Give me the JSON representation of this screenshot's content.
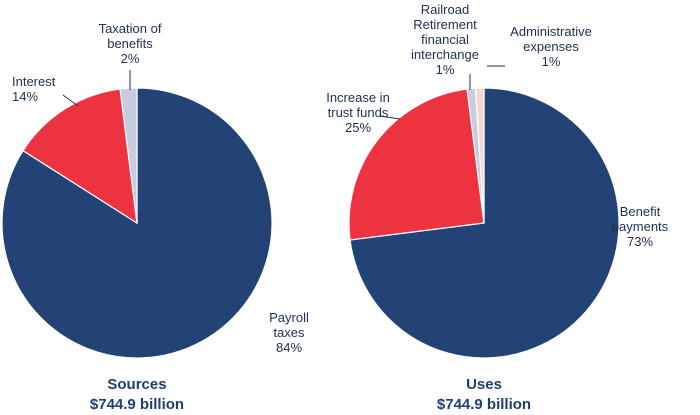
{
  "chart_data": [
    {
      "type": "pie",
      "caption": "Sources",
      "total": "$744.9 billion",
      "slices": [
        {
          "label": [
            "Payroll",
            "taxes",
            "84%"
          ],
          "value": 84,
          "color": "#234276"
        },
        {
          "label": [
            "Interest",
            "14%"
          ],
          "value": 14,
          "color": "#ee3340"
        },
        {
          "label": [
            "Taxation of",
            "benefits",
            "2%"
          ],
          "value": 2,
          "color": "#c7cce0"
        }
      ]
    },
    {
      "type": "pie",
      "caption": "Uses",
      "total": "$744.9 billion",
      "slices": [
        {
          "label": [
            "Benefit",
            "payments",
            "73%"
          ],
          "value": 73,
          "color": "#234276"
        },
        {
          "label": [
            "Increase in",
            "trust funds",
            "25%"
          ],
          "value": 25,
          "color": "#ee3340"
        },
        {
          "label": [
            "Railroad",
            "Retirement",
            "financial",
            "interchange",
            "1%"
          ],
          "value": 1,
          "color": "#c7cce0"
        },
        {
          "label": [
            "Administrative",
            "expenses",
            "1%"
          ],
          "value": 1,
          "color": "#f7d6d2"
        }
      ]
    }
  ]
}
